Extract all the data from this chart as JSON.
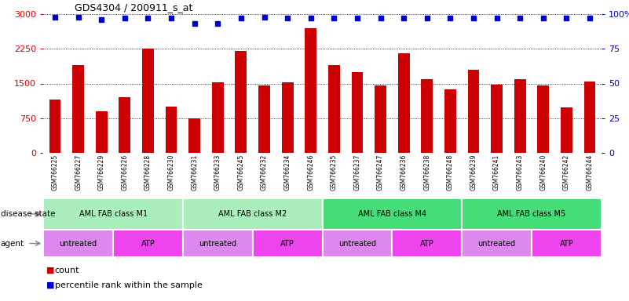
{
  "title": "GDS4304 / 200911_s_at",
  "samples": [
    "GSM766225",
    "GSM766227",
    "GSM766229",
    "GSM766226",
    "GSM766228",
    "GSM766230",
    "GSM766231",
    "GSM766233",
    "GSM766245",
    "GSM766232",
    "GSM766234",
    "GSM766246",
    "GSM766235",
    "GSM766237",
    "GSM766247",
    "GSM766236",
    "GSM766238",
    "GSM766248",
    "GSM766239",
    "GSM766241",
    "GSM766243",
    "GSM766240",
    "GSM766242",
    "GSM766244"
  ],
  "counts": [
    1150,
    1900,
    900,
    1200,
    2250,
    1000,
    750,
    1520,
    2200,
    1450,
    1530,
    2700,
    1900,
    1750,
    1450,
    2150,
    1600,
    1380,
    1800,
    1480,
    1600,
    1450,
    980,
    1550
  ],
  "percentile_ranks": [
    98,
    98,
    96,
    97,
    97,
    97,
    93,
    93,
    97,
    98,
    97,
    97,
    97,
    97,
    97,
    97,
    97,
    97,
    97,
    97,
    97,
    97,
    97,
    97
  ],
  "bar_color": "#cc0000",
  "dot_color": "#0000cc",
  "ylim_left": [
    0,
    3000
  ],
  "ylim_right": [
    0,
    100
  ],
  "yticks_left": [
    0,
    750,
    1500,
    2250,
    3000
  ],
  "yticks_right": [
    0,
    25,
    50,
    75,
    100
  ],
  "ytick_labels_right": [
    "0",
    "25",
    "50",
    "75",
    "100%"
  ],
  "disease_state_groups": [
    {
      "label": "AML FAB class M1",
      "start": 0,
      "end": 5,
      "color": "#aaeebb"
    },
    {
      "label": "AML FAB class M2",
      "start": 6,
      "end": 11,
      "color": "#aaeebb"
    },
    {
      "label": "AML FAB class M4",
      "start": 12,
      "end": 17,
      "color": "#44dd77"
    },
    {
      "label": "AML FAB class M5",
      "start": 18,
      "end": 23,
      "color": "#44dd77"
    }
  ],
  "agent_groups": [
    {
      "label": "untreated",
      "start": 0,
      "end": 2,
      "color": "#dd88ee"
    },
    {
      "label": "ATP",
      "start": 3,
      "end": 5,
      "color": "#ee44ee"
    },
    {
      "label": "untreated",
      "start": 6,
      "end": 8,
      "color": "#dd88ee"
    },
    {
      "label": "ATP",
      "start": 9,
      "end": 11,
      "color": "#ee44ee"
    },
    {
      "label": "untreated",
      "start": 12,
      "end": 14,
      "color": "#dd88ee"
    },
    {
      "label": "ATP",
      "start": 15,
      "end": 17,
      "color": "#ee44ee"
    },
    {
      "label": "untreated",
      "start": 18,
      "end": 20,
      "color": "#dd88ee"
    },
    {
      "label": "ATP",
      "start": 21,
      "end": 23,
      "color": "#ee44ee"
    }
  ],
  "legend_count_color": "#cc0000",
  "legend_dot_color": "#0000cc",
  "tick_label_color_left": "#cc0000",
  "tick_label_color_right": "#0000cc",
  "disease_state_label": "disease state",
  "agent_label": "agent",
  "xtick_bg_color": "#d8d8d8",
  "bar_width": 0.5
}
